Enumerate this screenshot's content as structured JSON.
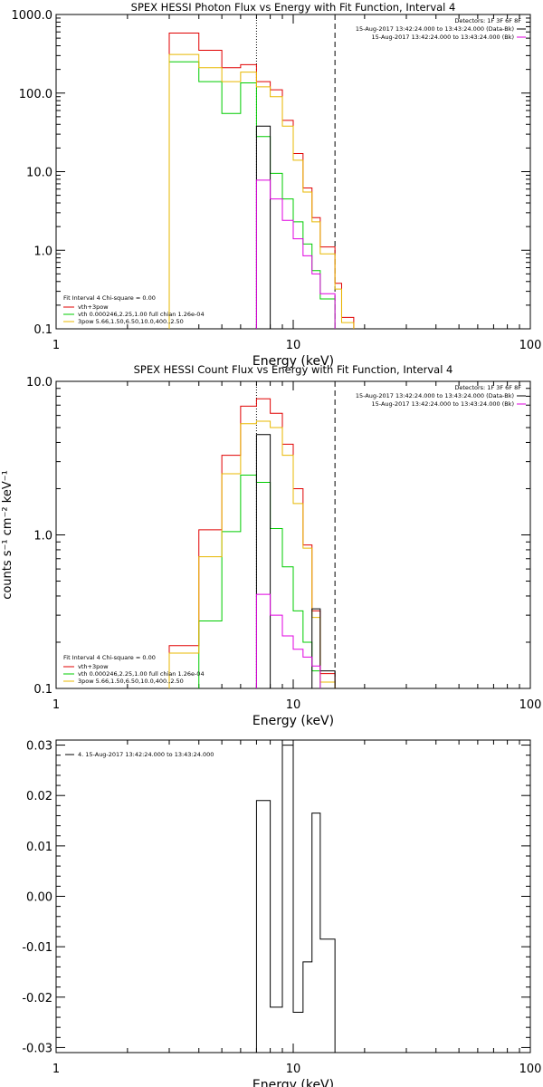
{
  "chart_data": [
    {
      "type": "line",
      "scale": "log-log",
      "title": "SPEX HESSI Photon Flux vs Energy with Fit Function, Interval 4",
      "xlabel": "Energy (keV)",
      "ylabel": "",
      "xlim": [
        1,
        100
      ],
      "ylim": [
        0.1,
        1000
      ],
      "x_ticks": [
        "1",
        "10",
        "100"
      ],
      "y_ticks": [
        "0.1",
        "1.0",
        "10.0",
        "100.0",
        "1000.0"
      ],
      "legend_top": [
        "Detectors: 1F 3F 6F 8F",
        "15-Aug-2017 13:42:24.000 to 13:43:24.000 (Data-Bk)",
        "15-Aug-2017 13:42:24.000 to 13:43:24.000 (Bk)"
      ],
      "legend_bottom": [
        "Fit Interval 4   Chi-square = 0.00",
        "vth+3pow",
        "vth 0.000246,2.25,1.00  full chian 1.26e-04",
        "3pow 5.66,1.50,6.50,10.0,400.,2.50"
      ],
      "vlines": [
        {
          "x": 7.0,
          "style": "dotted"
        },
        {
          "x": 15.0,
          "style": "dashed"
        }
      ],
      "series": [
        {
          "name": "vth+3pow",
          "color": "#e00000",
          "edges": [
            3,
            4,
            5,
            6,
            7,
            8,
            9,
            10,
            11,
            12,
            13,
            15,
            16,
            18
          ],
          "values": [
            580,
            350,
            210,
            230,
            140,
            110,
            45,
            17,
            6.2,
            2.6,
            1.1,
            0.38,
            0.14
          ]
        },
        {
          "name": "vth 0.000246,2.25,1.00  full chian 1.26e-04",
          "color": "#00cc00",
          "edges": [
            3,
            4,
            5,
            6,
            7,
            8,
            9,
            10,
            11,
            12,
            13,
            15
          ],
          "values": [
            250,
            140,
            55,
            135,
            28,
            9.5,
            4.5,
            2.3,
            1.2,
            0.55,
            0.24
          ]
        },
        {
          "name": "3pow 5.66,1.50,6.50,10.0,400.,2.50",
          "color": "#e8b800",
          "edges": [
            3,
            4,
            5,
            6,
            7,
            8,
            9,
            10,
            11,
            12,
            13,
            15,
            16,
            18
          ],
          "values": [
            310,
            210,
            140,
            185,
            120,
            90,
            38,
            14,
            5.5,
            2.3,
            0.9,
            0.32,
            0.12
          ]
        },
        {
          "name": "",
          "color": "#000000",
          "edges": [
            7,
            8
          ],
          "values": [
            38
          ]
        },
        {
          "name": "",
          "color": "#e000e0",
          "edges": [
            7,
            8,
            9,
            10,
            11,
            12,
            13,
            15
          ],
          "values": [
            7.8,
            4.5,
            2.4,
            1.4,
            0.85,
            0.5,
            0.28
          ]
        }
      ]
    },
    {
      "type": "line",
      "scale": "log-log",
      "title": "SPEX HESSI Count Flux vs Energy with Fit Function, Interval 4",
      "xlabel": "Energy (keV)",
      "ylabel": "counts s⁻¹ cm⁻² keV⁻¹",
      "xlim": [
        1,
        100
      ],
      "ylim": [
        0.1,
        10
      ],
      "x_ticks": [
        "1",
        "10",
        "100"
      ],
      "y_ticks": [
        "0.1",
        "1.0",
        "10.0"
      ],
      "legend_top": [
        "Detectors: 1F 3F 6F 8F",
        "15-Aug-2017 13:42:24.000 to 13:43:24.000 (Data-Bk)",
        "15-Aug-2017 13:42:24.000 to 13:43:24.000 (Bk)"
      ],
      "legend_bottom": [
        "Fit Interval 4   Chi-square = 0.00",
        "vth+3pow",
        "vth 0.000246,2.25,1.00  full chian 1.26e-04",
        "3pow 5.66,1.50,6.50,10.0,400.,2.50"
      ],
      "vlines": [
        {
          "x": 7.0,
          "style": "dotted"
        },
        {
          "x": 15.0,
          "style": "dashed"
        }
      ],
      "series": [
        {
          "name": "vth+3pow",
          "color": "#e00000",
          "edges": [
            3,
            4,
            5,
            6,
            7,
            8,
            9,
            10,
            11,
            12,
            13,
            15
          ],
          "values": [
            0.19,
            1.08,
            3.3,
            6.9,
            7.7,
            6.2,
            3.9,
            2.0,
            0.86,
            0.32,
            0.125
          ]
        },
        {
          "name": "vth 0.000246,2.25,1.00  full chian 1.26e-04",
          "color": "#00cc00",
          "edges": [
            4,
            5,
            6,
            7,
            8,
            9,
            10,
            11,
            12,
            13
          ],
          "values": [
            0.275,
            1.05,
            2.45,
            2.2,
            1.1,
            0.62,
            0.32,
            0.2,
            0.13
          ]
        },
        {
          "name": "3pow 5.66,1.50,6.50,10.0,400.,2.50",
          "color": "#e8b800",
          "edges": [
            3,
            4,
            5,
            6,
            7,
            8,
            9,
            10,
            11,
            12,
            13,
            15
          ],
          "values": [
            0.17,
            0.72,
            2.5,
            5.3,
            5.5,
            5.0,
            3.3,
            1.6,
            0.82,
            0.29,
            0.11
          ]
        },
        {
          "name": "",
          "color": "#000000",
          "edges": [
            7,
            8,
            12,
            13,
            14,
            15
          ],
          "values": [
            4.5,
            0.0,
            0.33,
            0.13,
            0.13
          ]
        },
        {
          "name": "",
          "color": "#e000e0",
          "edges": [
            7,
            8,
            9,
            10,
            11,
            12,
            13
          ],
          "values": [
            0.41,
            0.3,
            0.22,
            0.18,
            0.16,
            0.14
          ]
        }
      ]
    },
    {
      "type": "line",
      "scale": "log-x",
      "title": "",
      "xlabel": "Energy (keV)",
      "ylabel": "",
      "xlim": [
        1,
        100
      ],
      "ylim": [
        -0.031,
        0.031
      ],
      "x_ticks": [
        "1",
        "10",
        "100"
      ],
      "y_ticks": [
        "-0.03",
        "-0.02",
        "-0.01",
        "0.00",
        "0.01",
        "0.02",
        "0.03"
      ],
      "legend_top": [
        "4. 15-Aug-2017 13:42:24.000 to 13:43:24.000"
      ],
      "series": [
        {
          "name": "4. 15-Aug-2017 13:42:24.000 to 13:43:24.000",
          "color": "#000000",
          "edges": [
            7,
            8,
            9,
            10,
            11,
            12,
            13,
            15
          ],
          "values": [
            0.019,
            -0.022,
            0.03,
            -0.023,
            -0.013,
            0.0165,
            -0.0085
          ]
        }
      ]
    }
  ]
}
